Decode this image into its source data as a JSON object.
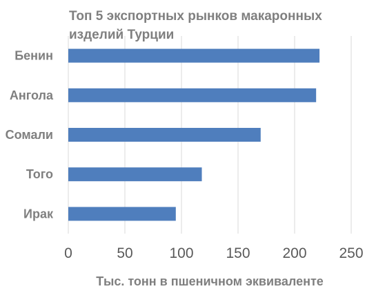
{
  "chart_data": {
    "type": "bar",
    "orientation": "horizontal",
    "title": "Топ 5 экспортных рынков макаронных изделий Турции",
    "xlabel": "Тыс. тонн в пшеничном эквиваленте",
    "ylabel": "",
    "categories": [
      "Бенин",
      "Ангола",
      "Сомали",
      "Того",
      "Ирак"
    ],
    "values": [
      222,
      219,
      170,
      118,
      95
    ],
    "xlim": [
      0,
      250
    ],
    "xticks": [
      0,
      50,
      100,
      150,
      200,
      250
    ],
    "grid": true,
    "bar_color": "#4f7ebd"
  }
}
